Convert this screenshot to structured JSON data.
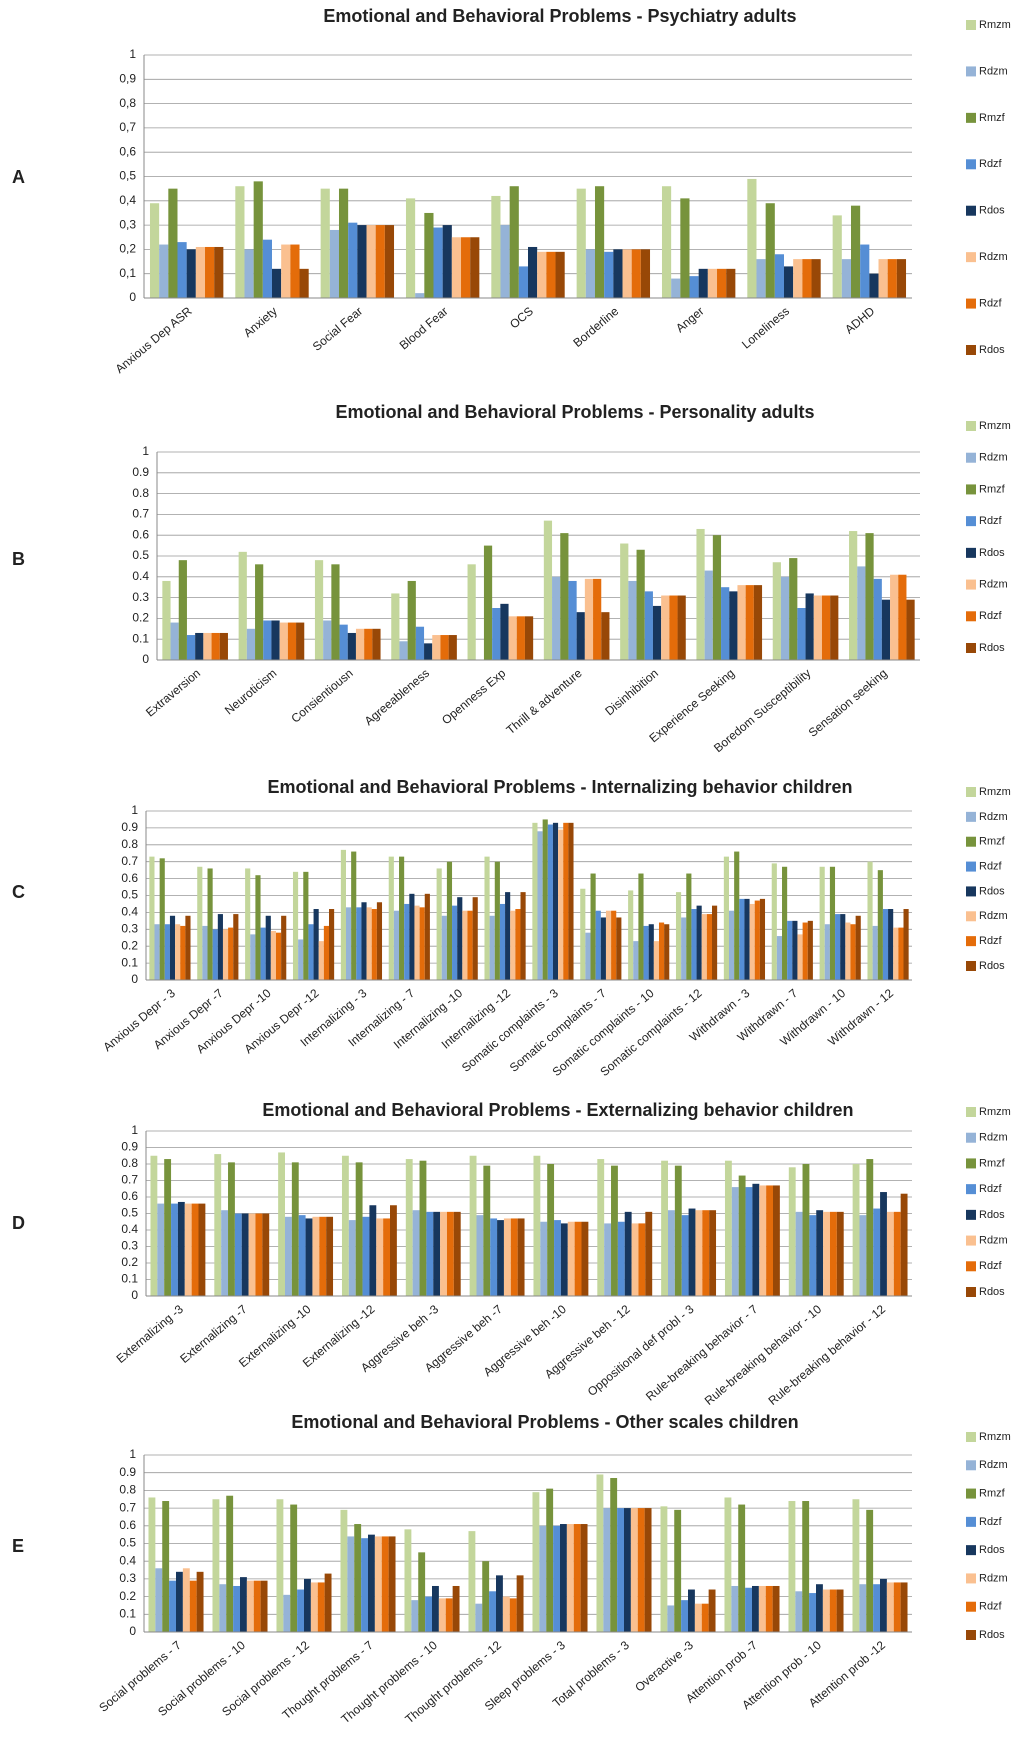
{
  "chart_data": [
    {
      "type": "bar",
      "label": "A",
      "title": "Emotional and Behavioral Problems - Psychiatry adults",
      "categories": [
        "Anxious Dep ASR",
        "Anxiety",
        "Social Fear",
        "Blood Fear",
        "OCS",
        "Borderline",
        "Anger",
        "Loneliness",
        "ADHD"
      ],
      "ylim": [
        0,
        1
      ],
      "yticks": [
        0,
        {
          "value": 0.1,
          "label": "0,1"
        },
        {
          "value": 0.2,
          "label": "0,2"
        },
        {
          "value": 0.3,
          "label": "0,3"
        },
        {
          "value": 0.4,
          "label": "0,4"
        },
        {
          "value": 0.5,
          "label": "0,5"
        },
        {
          "value": 0.6,
          "label": "0,6"
        },
        {
          "value": 0.7,
          "label": "0,7"
        },
        {
          "value": 0.8,
          "label": "0,8"
        },
        {
          "value": 0.9,
          "label": "0,9"
        },
        1
      ],
      "grid": true,
      "series": [
        {
          "name": "Rmzm",
          "color": "#c3d69b",
          "values": [
            0.39,
            0.46,
            0.45,
            0.41,
            0.42,
            0.45,
            0.46,
            0.49,
            0.34
          ]
        },
        {
          "name": "Rdzm",
          "color": "#95b3d7",
          "values": [
            0.22,
            0.2,
            0.28,
            0.02,
            0.3,
            0.2,
            0.08,
            0.16,
            0.16
          ]
        },
        {
          "name": "Rmzf",
          "color": "#77933c",
          "values": [
            0.45,
            0.48,
            0.45,
            0.35,
            0.46,
            0.46,
            0.41,
            0.39,
            0.38
          ]
        },
        {
          "name": "Rdzf",
          "color": "#558ed5",
          "values": [
            0.23,
            0.24,
            0.31,
            0.29,
            0.13,
            0.19,
            0.09,
            0.18,
            0.22
          ]
        },
        {
          "name": "Rdos",
          "color": "#17375e",
          "values": [
            0.2,
            0.12,
            0.3,
            0.3,
            0.21,
            0.2,
            0.12,
            0.13,
            0.1
          ]
        },
        {
          "name": "Rdzm",
          "color": "#fac090",
          "values": [
            0.21,
            0.22,
            0.3,
            0.25,
            0.19,
            0.2,
            0.12,
            0.16,
            0.16
          ]
        },
        {
          "name": "Rdzf",
          "color": "#e46c0a",
          "values": [
            0.21,
            0.22,
            0.3,
            0.25,
            0.19,
            0.2,
            0.12,
            0.16,
            0.16
          ]
        },
        {
          "name": "Rdos",
          "color": "#984807",
          "values": [
            0.21,
            0.12,
            0.3,
            0.25,
            0.19,
            0.2,
            0.12,
            0.16,
            0.16
          ]
        }
      ]
    },
    {
      "type": "bar",
      "label": "B",
      "title": "Emotional and Behavioral Problems - Personality adults",
      "categories": [
        "Extraversion",
        "Neuroticism",
        "Consientiousn",
        "Agreeableness",
        "Openness Exp",
        "Thrill & adventure",
        "Disinhibition",
        "Experience Seeking",
        "Boredom Susceptibility",
        "Sensation seeking"
      ],
      "ylim": [
        0,
        1
      ],
      "yticks": [
        0,
        0.1,
        0.2,
        0.3,
        0.4,
        0.5,
        0.6,
        0.7,
        0.8,
        0.9,
        1
      ],
      "grid": true,
      "series": [
        {
          "name": "Rmzm",
          "color": "#c3d69b",
          "values": [
            0.38,
            0.52,
            0.48,
            0.32,
            0.46,
            0.67,
            0.56,
            0.63,
            0.47,
            0.62
          ]
        },
        {
          "name": "Rdzm",
          "color": "#95b3d7",
          "values": [
            0.18,
            0.15,
            0.19,
            0.09,
            0,
            0.4,
            0.38,
            0.43,
            0.4,
            0.45
          ]
        },
        {
          "name": "Rmzf",
          "color": "#77933c",
          "values": [
            0.48,
            0.46,
            0.46,
            0.38,
            0.55,
            0.61,
            0.53,
            0.6,
            0.49,
            0.61
          ]
        },
        {
          "name": "Rdzf",
          "color": "#558ed5",
          "values": [
            0.12,
            0.19,
            0.17,
            0.16,
            0.25,
            0.38,
            0.33,
            0.35,
            0.25,
            0.39
          ]
        },
        {
          "name": "Rdos",
          "color": "#17375e",
          "values": [
            0.13,
            0.19,
            0.13,
            0.08,
            0.27,
            0.23,
            0.26,
            0.33,
            0.32,
            0.29
          ]
        },
        {
          "name": "Rdzm",
          "color": "#fac090",
          "values": [
            0.13,
            0.18,
            0.15,
            0.12,
            0.21,
            0.39,
            0.31,
            0.36,
            0.31,
            0.41
          ]
        },
        {
          "name": "Rdzf",
          "color": "#e46c0a",
          "values": [
            0.13,
            0.18,
            0.15,
            0.12,
            0.21,
            0.39,
            0.31,
            0.36,
            0.31,
            0.41
          ]
        },
        {
          "name": "Rdos",
          "color": "#984807",
          "values": [
            0.13,
            0.18,
            0.15,
            0.12,
            0.21,
            0.23,
            0.31,
            0.36,
            0.31,
            0.29
          ]
        }
      ]
    },
    {
      "type": "bar",
      "label": "C",
      "title": "Emotional and Behavioral Problems - Internalizing behavior children",
      "categories": [
        "Anxious Depr - 3",
        "Anxious Depr -7",
        "Anxious Depr -10",
        "Anxious Depr -12",
        "Internalizing - 3",
        "Internalizing - 7",
        "Internalizing -10",
        "Internalizing -12",
        "Somatic complaints - 3",
        "Somatic complaints - 7",
        "Somatic complaints - 10",
        "Somatic complaints - 12",
        "Withdrawn - 3",
        "Withdrawn - 7",
        "Withdrawn - 10",
        "Withdrawn - 12"
      ],
      "ylim": [
        0,
        1
      ],
      "yticks": [
        0,
        0.1,
        0.2,
        0.3,
        0.4,
        0.5,
        0.6,
        0.7,
        0.8,
        0.9,
        1
      ],
      "grid": true,
      "series": [
        {
          "name": "Rmzm",
          "color": "#c3d69b",
          "values": [
            0.73,
            0.67,
            0.66,
            0.64,
            0.77,
            0.73,
            0.66,
            0.73,
            0.93,
            0.54,
            0.53,
            0.52,
            0.73,
            0.69,
            0.67,
            0.7
          ]
        },
        {
          "name": "Rdzm",
          "color": "#95b3d7",
          "values": [
            0.33,
            0.32,
            0.27,
            0.24,
            0.43,
            0.41,
            0.38,
            0.38,
            0.88,
            0.28,
            0.23,
            0.37,
            0.41,
            0.26,
            0.33,
            0.32
          ]
        },
        {
          "name": "Rmzf",
          "color": "#77933c",
          "values": [
            0.72,
            0.66,
            0.62,
            0.64,
            0.76,
            0.73,
            0.7,
            0.7,
            0.95,
            0.63,
            0.63,
            0.63,
            0.76,
            0.67,
            0.67,
            0.65
          ]
        },
        {
          "name": "Rdzf",
          "color": "#558ed5",
          "values": [
            0.33,
            0.3,
            0.31,
            0.33,
            0.43,
            0.45,
            0.44,
            0.45,
            0.92,
            0.41,
            0.32,
            0.42,
            0.48,
            0.35,
            0.39,
            0.42
          ]
        },
        {
          "name": "Rdos",
          "color": "#17375e",
          "values": [
            0.38,
            0.39,
            0.38,
            0.42,
            0.46,
            0.51,
            0.49,
            0.52,
            0.93,
            0.37,
            0.33,
            0.44,
            0.48,
            0.35,
            0.39,
            0.42
          ]
        },
        {
          "name": "Rdzm",
          "color": "#fac090",
          "values": [
            0.33,
            0.3,
            0.29,
            0.23,
            0.43,
            0.44,
            0.41,
            0.41,
            0.89,
            0.41,
            0.23,
            0.39,
            0.45,
            0.27,
            0.34,
            0.31
          ]
        },
        {
          "name": "Rdzf",
          "color": "#e46c0a",
          "values": [
            0.32,
            0.31,
            0.28,
            0.32,
            0.42,
            0.43,
            0.41,
            0.42,
            0.93,
            0.41,
            0.34,
            0.39,
            0.47,
            0.34,
            0.33,
            0.31
          ]
        },
        {
          "name": "Rdos",
          "color": "#984807",
          "values": [
            0.38,
            0.39,
            0.38,
            0.42,
            0.46,
            0.51,
            0.49,
            0.52,
            0.93,
            0.37,
            0.33,
            0.44,
            0.48,
            0.35,
            0.38,
            0.42
          ]
        }
      ]
    },
    {
      "type": "bar",
      "label": "D",
      "title": "Emotional and Behavioral Problems - Externalizing behavior children",
      "categories": [
        "Externalizing -3",
        "Externalizing -7",
        "Externalizing -10",
        "Externalizing -12",
        "Aggressive beh -3",
        "Aggressive beh -7",
        "Aggressive beh -10",
        "Aggressive beh - 12",
        "Oppositional def probl - 3",
        "Rule-breaking behavior - 7",
        "Rule-breaking behavior - 10",
        "Rule-breaking behavior - 12"
      ],
      "ylim": [
        0,
        1
      ],
      "yticks": [
        0,
        0.1,
        0.2,
        0.3,
        0.4,
        0.5,
        0.6,
        0.7,
        0.8,
        0.9,
        1
      ],
      "grid": true,
      "series": [
        {
          "name": "Rmzm",
          "color": "#c3d69b",
          "values": [
            0.85,
            0.86,
            0.87,
            0.85,
            0.83,
            0.85,
            0.85,
            0.83,
            0.82,
            0.82,
            0.78,
            0.8
          ]
        },
        {
          "name": "Rdzm",
          "color": "#95b3d7",
          "values": [
            0.56,
            0.52,
            0.48,
            0.46,
            0.52,
            0.49,
            0.45,
            0.44,
            0.52,
            0.66,
            0.51,
            0.49
          ]
        },
        {
          "name": "Rmzf",
          "color": "#77933c",
          "values": [
            0.83,
            0.81,
            0.81,
            0.81,
            0.82,
            0.79,
            0.8,
            0.79,
            0.79,
            0.73,
            0.8,
            0.83
          ]
        },
        {
          "name": "Rdzf",
          "color": "#558ed5",
          "values": [
            0.56,
            0.5,
            0.49,
            0.48,
            0.51,
            0.47,
            0.46,
            0.45,
            0.49,
            0.66,
            0.49,
            0.53
          ]
        },
        {
          "name": "Rdos",
          "color": "#17375e",
          "values": [
            0.57,
            0.5,
            0.47,
            0.55,
            0.51,
            0.46,
            0.44,
            0.51,
            0.53,
            0.68,
            0.52,
            0.63
          ]
        },
        {
          "name": "Rdzm",
          "color": "#fac090",
          "values": [
            0.56,
            0.5,
            0.48,
            0.47,
            0.51,
            0.47,
            0.45,
            0.44,
            0.52,
            0.67,
            0.51,
            0.51
          ]
        },
        {
          "name": "Rdzf",
          "color": "#e46c0a",
          "values": [
            0.56,
            0.5,
            0.48,
            0.47,
            0.51,
            0.47,
            0.45,
            0.44,
            0.52,
            0.67,
            0.51,
            0.51
          ]
        },
        {
          "name": "Rdos",
          "color": "#984807",
          "values": [
            0.56,
            0.5,
            0.48,
            0.55,
            0.51,
            0.47,
            0.45,
            0.51,
            0.52,
            0.67,
            0.51,
            0.62
          ]
        }
      ]
    },
    {
      "type": "bar",
      "label": "E",
      "title": "Emotional and Behavioral Problems - Other scales children",
      "categories": [
        "Social problems - 7",
        "Social problems - 10",
        "Social problems - 12",
        "Thought problems - 7",
        "Thought problems - 10",
        "Thought problems - 12",
        "Sleep problems - 3",
        "Total problems - 3",
        "Overactive -3",
        "Attention prob -7",
        "Attention prob - 10",
        "Attention prob -12"
      ],
      "ylim": [
        0,
        1
      ],
      "yticks": [
        0,
        0.1,
        0.2,
        0.3,
        0.4,
        0.5,
        0.6,
        0.7,
        0.8,
        0.9,
        1
      ],
      "grid": true,
      "series": [
        {
          "name": "Rmzm",
          "color": "#c3d69b",
          "values": [
            0.76,
            0.75,
            0.75,
            0.69,
            0.58,
            0.57,
            0.79,
            0.89,
            0.71,
            0.76,
            0.74,
            0.75
          ]
        },
        {
          "name": "Rdzm",
          "color": "#95b3d7",
          "values": [
            0.36,
            0.27,
            0.21,
            0.54,
            0.18,
            0.16,
            0.6,
            0.7,
            0.15,
            0.26,
            0.23,
            0.27
          ]
        },
        {
          "name": "Rmzf",
          "color": "#77933c",
          "values": [
            0.74,
            0.77,
            0.72,
            0.61,
            0.45,
            0.4,
            0.81,
            0.87,
            0.69,
            0.72,
            0.74,
            0.69
          ]
        },
        {
          "name": "Rdzf",
          "color": "#558ed5",
          "values": [
            0.29,
            0.26,
            0.24,
            0.53,
            0.2,
            0.23,
            0.6,
            0.7,
            0.18,
            0.25,
            0.22,
            0.27
          ]
        },
        {
          "name": "Rdos",
          "color": "#17375e",
          "values": [
            0.34,
            0.31,
            0.3,
            0.55,
            0.26,
            0.32,
            0.61,
            0.7,
            0.24,
            0.26,
            0.27,
            0.3
          ]
        },
        {
          "name": "Rdzm",
          "color": "#fac090",
          "values": [
            0.36,
            0.29,
            0.28,
            0.54,
            0.19,
            0.2,
            0.61,
            0.7,
            0.16,
            0.26,
            0.24,
            0.28
          ]
        },
        {
          "name": "Rdzf",
          "color": "#e46c0a",
          "values": [
            0.29,
            0.29,
            0.28,
            0.54,
            0.19,
            0.19,
            0.61,
            0.7,
            0.16,
            0.26,
            0.24,
            0.28
          ]
        },
        {
          "name": "Rdos",
          "color": "#984807",
          "values": [
            0.34,
            0.29,
            0.33,
            0.54,
            0.26,
            0.32,
            0.61,
            0.7,
            0.24,
            0.26,
            0.24,
            0.28
          ]
        }
      ]
    }
  ]
}
